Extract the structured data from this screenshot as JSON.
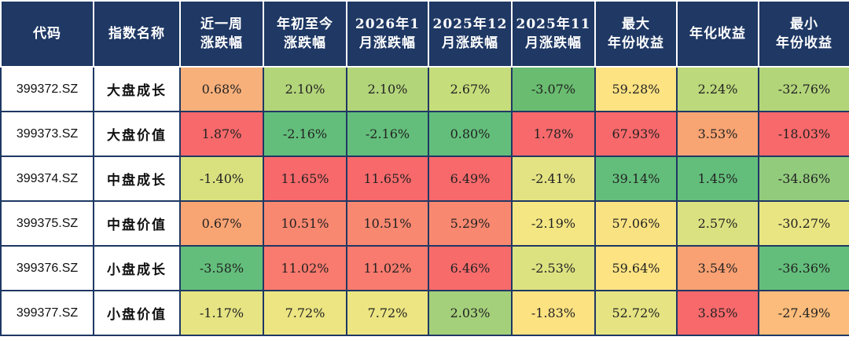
{
  "table": {
    "headers": [
      [
        "代码"
      ],
      [
        "指数名称"
      ],
      [
        "近一周",
        "涨跌幅"
      ],
      [
        "年初至今",
        "涨跌幅"
      ],
      [
        "2026年1",
        "月涨跌幅"
      ],
      [
        "2025年12",
        "月涨跌幅"
      ],
      [
        "2025年11",
        "月涨跌幅"
      ],
      [
        "最大",
        "年份收益"
      ],
      [
        "年化收益"
      ],
      [
        "最小",
        "年份收益"
      ]
    ],
    "rows": [
      {
        "code": "399372.SZ",
        "name": "大盘成长",
        "cells": [
          {
            "text": "0.68%",
            "color": "#f8b07a"
          },
          {
            "text": "2.10%",
            "color": "#b3d57a"
          },
          {
            "text": "2.10%",
            "color": "#b3d57a"
          },
          {
            "text": "2.67%",
            "color": "#c6dd7b"
          },
          {
            "text": "-3.07%",
            "color": "#69bc70"
          },
          {
            "text": "59.28%",
            "color": "#fde382"
          },
          {
            "text": "2.24%",
            "color": "#bcd97b"
          },
          {
            "text": "-32.76%",
            "color": "#b3d57a"
          }
        ]
      },
      {
        "code": "399373.SZ",
        "name": "大盘价值",
        "cells": [
          {
            "text": "1.87%",
            "color": "#f8696b"
          },
          {
            "text": "-2.16%",
            "color": "#63be7b"
          },
          {
            "text": "-2.16%",
            "color": "#63be7b"
          },
          {
            "text": "0.80%",
            "color": "#63be7b"
          },
          {
            "text": "1.78%",
            "color": "#f8696b"
          },
          {
            "text": "67.93%",
            "color": "#f8696b"
          },
          {
            "text": "3.53%",
            "color": "#f9a473"
          },
          {
            "text": "-18.03%",
            "color": "#f8696b"
          }
        ]
      },
      {
        "code": "399374.SZ",
        "name": "中盘成长",
        "cells": [
          {
            "text": "-1.40%",
            "color": "#d9e17f"
          },
          {
            "text": "11.65%",
            "color": "#f8696b"
          },
          {
            "text": "11.65%",
            "color": "#f8696b"
          },
          {
            "text": "6.49%",
            "color": "#f8696b"
          },
          {
            "text": "-2.41%",
            "color": "#e3e383"
          },
          {
            "text": "39.14%",
            "color": "#63be7b"
          },
          {
            "text": "1.45%",
            "color": "#63be7b"
          },
          {
            "text": "-34.86%",
            "color": "#93cb7d"
          }
        ]
      },
      {
        "code": "399375.SZ",
        "name": "中盘价值",
        "cells": [
          {
            "text": "0.67%",
            "color": "#f9a473"
          },
          {
            "text": "10.51%",
            "color": "#f98870"
          },
          {
            "text": "10.51%",
            "color": "#f98870"
          },
          {
            "text": "5.29%",
            "color": "#f98870"
          },
          {
            "text": "-2.19%",
            "color": "#f4e683"
          },
          {
            "text": "57.06%",
            "color": "#f9e282"
          },
          {
            "text": "2.57%",
            "color": "#dae180"
          },
          {
            "text": "-30.27%",
            "color": "#eae583"
          }
        ]
      },
      {
        "code": "399376.SZ",
        "name": "小盘成长",
        "cells": [
          {
            "text": "-3.58%",
            "color": "#63be7b"
          },
          {
            "text": "11.02%",
            "color": "#f97a6e"
          },
          {
            "text": "11.02%",
            "color": "#f97a6e"
          },
          {
            "text": "6.46%",
            "color": "#f86b6b"
          },
          {
            "text": "-2.53%",
            "color": "#dde281"
          },
          {
            "text": "59.64%",
            "color": "#fde382"
          },
          {
            "text": "3.54%",
            "color": "#f9a173"
          },
          {
            "text": "-36.36%",
            "color": "#63be7b"
          }
        ]
      },
      {
        "code": "399377.SZ",
        "name": "小盘价值",
        "cells": [
          {
            "text": "-1.17%",
            "color": "#e6e483"
          },
          {
            "text": "7.72%",
            "color": "#ece582"
          },
          {
            "text": "7.72%",
            "color": "#ece582"
          },
          {
            "text": "2.03%",
            "color": "#a5d07b"
          },
          {
            "text": "-1.83%",
            "color": "#fde282"
          },
          {
            "text": "52.72%",
            "color": "#e6e482"
          },
          {
            "text": "3.85%",
            "color": "#f8696b"
          },
          {
            "text": "-27.49%",
            "color": "#fcbc7b"
          }
        ]
      }
    ]
  }
}
